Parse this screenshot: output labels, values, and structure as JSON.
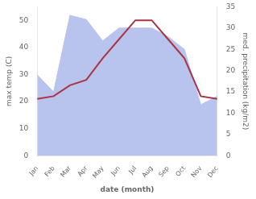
{
  "chart_data": {
    "type": "line",
    "xlabel": "date (month)",
    "ylabel": "max temp (C)",
    "y2label": "med. precipitation (kg/m2)",
    "categories": [
      "Jan",
      "Feb",
      "Mar",
      "Apr",
      "May",
      "Jun",
      "Jul",
      "Aug",
      "Sep",
      "Oct",
      "Nov",
      "Dec"
    ],
    "series": [
      {
        "type": "line",
        "color": "#aa3344",
        "values": [
          21,
          22,
          26,
          28,
          36,
          43,
          50,
          50,
          43,
          36,
          22,
          21
        ]
      },
      {
        "type": "area",
        "color": "#b8c4ee",
        "axis": "y2",
        "values": [
          19,
          15,
          33,
          32,
          27,
          30,
          30,
          30,
          28,
          25,
          12,
          14
        ]
      }
    ],
    "ylim": [
      0,
      55
    ],
    "yticks": [
      0,
      10,
      20,
      30,
      40,
      50
    ],
    "y2lim": [
      0,
      35
    ],
    "y2ticks": [
      0,
      5,
      10,
      15,
      20,
      25,
      30,
      35
    ],
    "grid": false
  }
}
